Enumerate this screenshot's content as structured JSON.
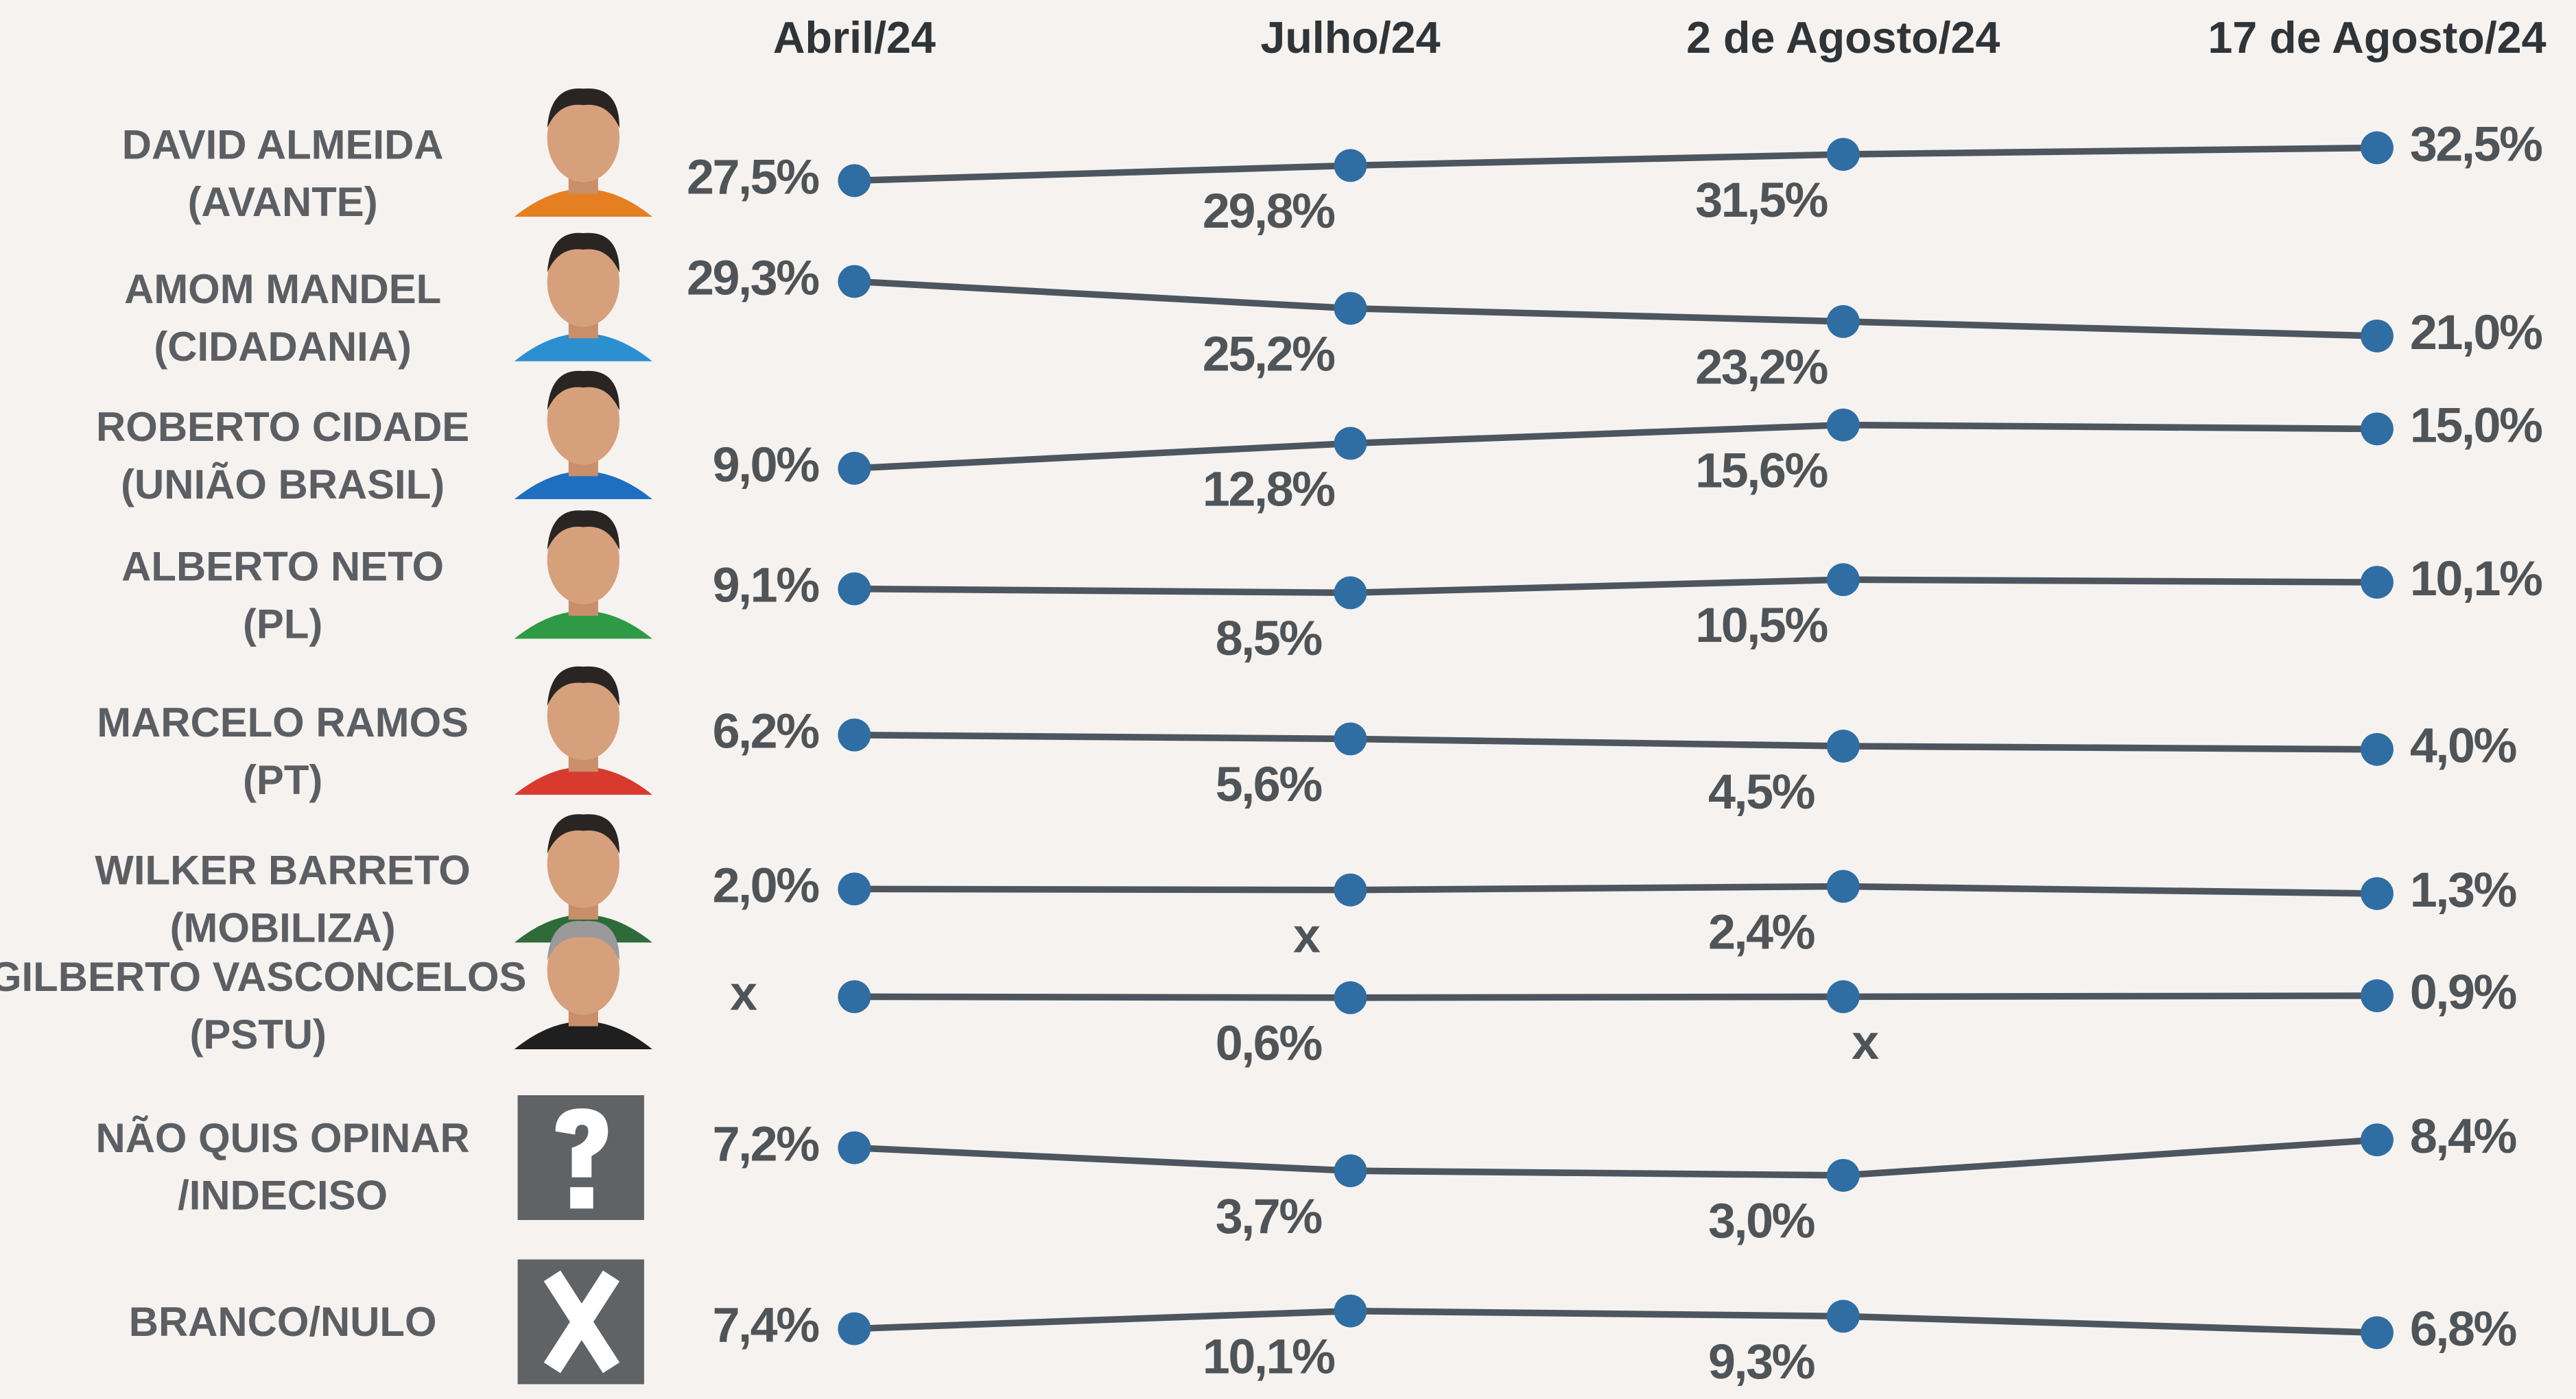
{
  "chart_data": {
    "type": "line",
    "categories": [
      "Abril/24",
      "Julho/24",
      "2 de Agosto/24",
      "17 de Agosto/24"
    ],
    "color": "#2f6da3",
    "line_color": "#4d565e",
    "series": [
      {
        "name": "DAVID ALMEIDA",
        "party": "(AVANTE)",
        "values": [
          27.5,
          29.8,
          31.5,
          32.5
        ],
        "value_labels": [
          "27,5%",
          "29,8%",
          "31,5%",
          "32,5%"
        ]
      },
      {
        "name": "AMOM MANDEL",
        "party": "(CIDADANIA)",
        "values": [
          29.3,
          25.2,
          23.2,
          21.0
        ],
        "value_labels": [
          "29,3%",
          "25,2%",
          "23,2%",
          "21,0%"
        ]
      },
      {
        "name": "ROBERTO CIDADE",
        "party": "(UNIÃO BRASIL)",
        "values": [
          9.0,
          12.8,
          15.6,
          15.0
        ],
        "value_labels": [
          "9,0%",
          "12,8%",
          "15,6%",
          "15,0%"
        ]
      },
      {
        "name": "ALBERTO NETO",
        "party": "(PL)",
        "values": [
          9.1,
          8.5,
          10.5,
          10.1
        ],
        "value_labels": [
          "9,1%",
          "8,5%",
          "10,5%",
          "10,1%"
        ]
      },
      {
        "name": "MARCELO RAMOS",
        "party": "(PT)",
        "values": [
          6.2,
          5.6,
          4.5,
          4.0
        ],
        "value_labels": [
          "6,2%",
          "5,6%",
          "4,5%",
          "4,0%"
        ]
      },
      {
        "name": "WILKER BARRETO",
        "party": "(MOBILIZA)",
        "values": [
          2.0,
          null,
          2.4,
          1.3
        ],
        "value_labels": [
          "2,0%",
          "x",
          "2,4%",
          "1,3%"
        ]
      },
      {
        "name": "GILBERTO VASCONCELOS",
        "party": "(PSTU)",
        "values": [
          null,
          0.6,
          null,
          0.9
        ],
        "value_labels": [
          "x",
          "0,6%",
          "x",
          "0,9%"
        ]
      },
      {
        "name": "NÃO QUIS OPINAR",
        "party": "/INDECISO",
        "values": [
          7.2,
          3.7,
          3.0,
          8.4
        ],
        "value_labels": [
          "7,2%",
          "3,7%",
          "3,0%",
          "8,4%"
        ]
      },
      {
        "name": "BRANCO/NULO",
        "values": [
          7.4,
          10.1,
          9.3,
          6.8
        ],
        "value_labels": [
          "7,4%",
          "10,1%",
          "9,3%",
          "6,8%"
        ]
      }
    ]
  }
}
